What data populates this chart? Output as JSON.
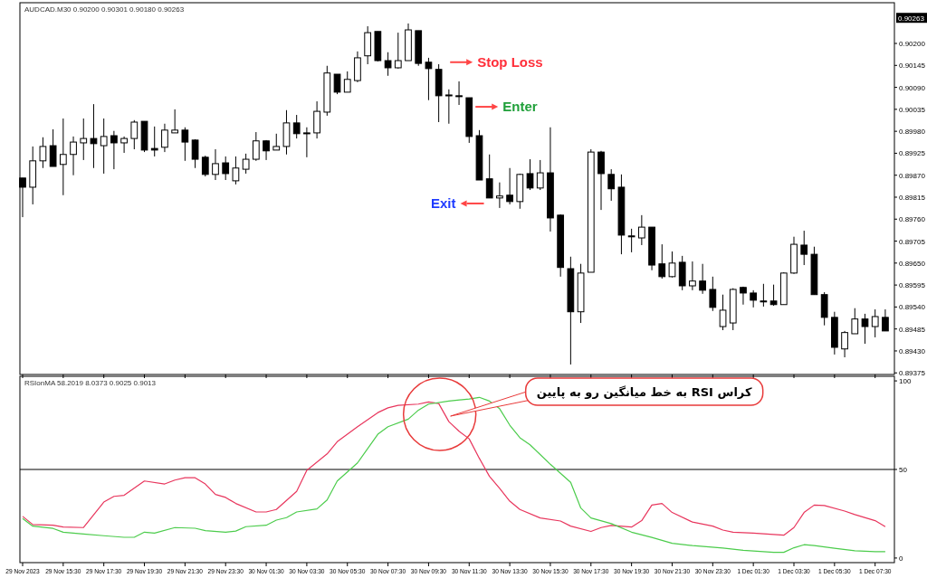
{
  "chart_data": [
    {
      "type": "candlestick",
      "title": "AUDCAD.M30  0.90200 0.90301 0.90180 0.90263",
      "color": "#000000",
      "x": [
        "2023-11-29T13:30",
        "2023-11-29T14:00",
        "2023-11-29T14:30",
        "2023-11-29T15:00",
        "2023-11-29T15:30",
        "2023-11-29T16:00",
        "2023-11-29T16:30",
        "2023-11-29T17:00",
        "2023-11-29T17:30",
        "2023-11-29T18:00",
        "2023-11-29T18:30",
        "2023-11-29T19:00",
        "2023-11-29T19:30",
        "2023-11-29T20:00",
        "2023-11-29T20:30",
        "2023-11-29T21:00",
        "2023-11-29T21:30",
        "2023-11-29T22:00",
        "2023-11-29T22:30",
        "2023-11-29T23:00",
        "2023-11-29T23:30",
        "2023-11-30T00:00",
        "2023-11-30T00:30",
        "2023-11-30T01:00",
        "2023-11-30T01:30",
        "2023-11-30T02:00",
        "2023-11-30T02:30",
        "2023-11-30T03:00",
        "2023-11-30T03:30",
        "2023-11-30T04:00",
        "2023-11-30T04:30",
        "2023-11-30T05:00",
        "2023-11-30T05:30",
        "2023-11-30T06:00",
        "2023-11-30T06:30",
        "2023-11-30T07:00",
        "2023-11-30T07:30",
        "2023-11-30T08:00",
        "2023-11-30T08:30",
        "2023-11-30T09:00",
        "2023-11-30T09:30",
        "2023-11-30T10:00",
        "2023-11-30T10:30",
        "2023-11-30T11:00",
        "2023-11-30T11:30",
        "2023-11-30T12:00",
        "2023-11-30T12:30",
        "2023-11-30T13:00",
        "2023-11-30T13:30",
        "2023-11-30T14:00",
        "2023-11-30T14:30",
        "2023-11-30T15:00",
        "2023-11-30T15:30",
        "2023-11-30T16:00",
        "2023-11-30T16:30",
        "2023-11-30T17:00",
        "2023-11-30T17:30",
        "2023-11-30T18:00",
        "2023-11-30T18:30",
        "2023-11-30T19:00",
        "2023-11-30T19:30",
        "2023-11-30T20:00",
        "2023-11-30T20:30",
        "2023-11-30T21:00",
        "2023-11-30T21:30",
        "2023-11-30T22:00",
        "2023-11-30T22:30",
        "2023-11-30T23:00",
        "2023-11-30T23:30",
        "2023-12-01T00:00",
        "2023-12-01T00:30",
        "2023-12-01T01:00",
        "2023-12-01T01:30",
        "2023-12-01T02:00",
        "2023-12-01T02:30",
        "2023-12-01T03:00",
        "2023-12-01T03:30",
        "2023-12-01T04:00",
        "2023-12-01T04:30",
        "2023-12-01T05:00",
        "2023-12-01T05:30",
        "2023-12-01T06:00",
        "2023-12-01T06:30",
        "2023-12-01T07:00",
        "2023-12-01T07:30",
        "2023-12-01T08:00"
      ],
      "ohlc": [
        [
          0.89863,
          0.89863,
          0.89765,
          0.8984
        ],
        [
          0.8984,
          0.89942,
          0.89797,
          0.89906
        ],
        [
          0.89906,
          0.89965,
          0.89888,
          0.89942
        ],
        [
          0.89944,
          0.89985,
          0.89892,
          0.89892
        ],
        [
          0.89897,
          0.90012,
          0.8982,
          0.89922
        ],
        [
          0.89922,
          0.89967,
          0.8987,
          0.89953
        ],
        [
          0.89951,
          0.90012,
          0.89908,
          0.89962
        ],
        [
          0.89962,
          0.90048,
          0.89888,
          0.89949
        ],
        [
          0.89944,
          0.90012,
          0.89874,
          0.89967
        ],
        [
          0.89969,
          0.89981,
          0.89885,
          0.89951
        ],
        [
          0.89951,
          0.89967,
          0.89926,
          0.89962
        ],
        [
          0.89962,
          0.90008,
          0.89935,
          0.90003
        ],
        [
          0.90005,
          0.90005,
          0.89928,
          0.89933
        ],
        [
          0.89937,
          0.89992,
          0.89917,
          0.89933
        ],
        [
          0.8994,
          0.89999,
          0.89928,
          0.89983
        ],
        [
          0.89976,
          0.90035,
          0.89976,
          0.89983
        ],
        [
          0.89983,
          0.8999,
          0.89906,
          0.89953
        ],
        [
          0.89958,
          0.8996,
          0.89888,
          0.8991
        ],
        [
          0.89915,
          0.89919,
          0.89867,
          0.89872
        ],
        [
          0.89872,
          0.89935,
          0.89858,
          0.89899
        ],
        [
          0.89901,
          0.89917,
          0.89858,
          0.89874
        ],
        [
          0.89856,
          0.89917,
          0.89847,
          0.89888
        ],
        [
          0.89885,
          0.89924,
          0.89874,
          0.8991
        ],
        [
          0.8991,
          0.89978,
          0.89906,
          0.89956
        ],
        [
          0.89956,
          0.89958,
          0.89908,
          0.89931
        ],
        [
          0.89933,
          0.89974,
          0.89933,
          0.89942
        ],
        [
          0.89942,
          0.90033,
          0.89922,
          0.90001
        ],
        [
          0.90001,
          0.90021,
          0.89962,
          0.89974
        ],
        [
          0.89976,
          0.8999,
          0.89915,
          0.89974
        ],
        [
          0.89976,
          0.90055,
          0.89962,
          0.9003
        ],
        [
          0.90028,
          0.90144,
          0.90019,
          0.90126
        ],
        [
          0.90123,
          0.90123,
          0.90073,
          0.90078
        ],
        [
          0.90078,
          0.9013,
          0.90078,
          0.9011
        ],
        [
          0.90107,
          0.9018,
          0.90103,
          0.90164
        ],
        [
          0.90169,
          0.90243,
          0.90148,
          0.90227
        ],
        [
          0.9023,
          0.9023,
          0.90155,
          0.90157
        ],
        [
          0.90157,
          0.90178,
          0.90119,
          0.90139
        ],
        [
          0.90139,
          0.90227,
          0.90137,
          0.90157
        ],
        [
          0.90157,
          0.9025,
          0.90157,
          0.90234
        ],
        [
          0.90232,
          0.90232,
          0.90144,
          0.9015
        ],
        [
          0.90153,
          0.90164,
          0.90058,
          0.90137
        ],
        [
          0.90135,
          0.90148,
          0.90003,
          0.90069
        ],
        [
          0.90071,
          0.90085,
          0.89999,
          0.90069
        ],
        [
          0.90069,
          0.90105,
          0.90046,
          0.90069
        ],
        [
          0.90064,
          0.90064,
          0.89951,
          0.89967
        ],
        [
          0.89969,
          0.89983,
          0.89858,
          0.89858
        ],
        [
          0.89861,
          0.89922,
          0.89813,
          0.89813
        ],
        [
          0.89813,
          0.89852,
          0.89788,
          0.89818
        ],
        [
          0.8982,
          0.89888,
          0.89797,
          0.89804
        ],
        [
          0.89804,
          0.89874,
          0.89786,
          0.89872
        ],
        [
          0.89874,
          0.8991,
          0.89833,
          0.89838
        ],
        [
          0.89838,
          0.89908,
          0.89833,
          0.89876
        ],
        [
          0.89876,
          0.8999,
          0.89729,
          0.89763
        ],
        [
          0.8977,
          0.89772,
          0.89616,
          0.89639
        ],
        [
          0.89636,
          0.89666,
          0.89396,
          0.89528
        ],
        [
          0.89528,
          0.89648,
          0.895,
          0.89625
        ],
        [
          0.89627,
          0.89935,
          0.89627,
          0.89928
        ],
        [
          0.89928,
          0.89931,
          0.89783,
          0.89874
        ],
        [
          0.89872,
          0.89885,
          0.89806,
          0.89836
        ],
        [
          0.8984,
          0.89872,
          0.89672,
          0.8972
        ],
        [
          0.89718,
          0.89736,
          0.89677,
          0.89718
        ],
        [
          0.89713,
          0.8977,
          0.89695,
          0.8974
        ],
        [
          0.8974,
          0.8974,
          0.89632,
          0.89645
        ],
        [
          0.89648,
          0.89697,
          0.89611,
          0.89616
        ],
        [
          0.89616,
          0.89679,
          0.89614,
          0.8965
        ],
        [
          0.89652,
          0.89668,
          0.89582,
          0.89593
        ],
        [
          0.89593,
          0.89654,
          0.89582,
          0.89605
        ],
        [
          0.89605,
          0.89648,
          0.89573,
          0.89582
        ],
        [
          0.89584,
          0.89616,
          0.8953,
          0.89539
        ],
        [
          0.89491,
          0.89571,
          0.89482,
          0.89532
        ],
        [
          0.895,
          0.89587,
          0.89482,
          0.89584
        ],
        [
          0.89589,
          0.89591,
          0.89546,
          0.89575
        ],
        [
          0.89575,
          0.89582,
          0.89539,
          0.89557
        ],
        [
          0.89555,
          0.89598,
          0.89541,
          0.89555
        ],
        [
          0.89555,
          0.89596,
          0.89543,
          0.89546
        ],
        [
          0.89546,
          0.89627,
          0.89546,
          0.89625
        ],
        [
          0.89625,
          0.89716,
          0.89623,
          0.89697
        ],
        [
          0.89695,
          0.89731,
          0.89645,
          0.89672
        ],
        [
          0.89672,
          0.89691,
          0.89571,
          0.89571
        ],
        [
          0.89571,
          0.89577,
          0.89494,
          0.89514
        ],
        [
          0.89514,
          0.89528,
          0.89421,
          0.89439
        ],
        [
          0.89435,
          0.8948,
          0.89414,
          0.89476
        ],
        [
          0.89473,
          0.89537,
          0.89473,
          0.8951
        ],
        [
          0.8951,
          0.89523,
          0.89448,
          0.89491
        ],
        [
          0.89491,
          0.89534,
          0.89464,
          0.89516
        ],
        [
          0.89514,
          0.89534,
          0.8948,
          0.8948
        ]
      ],
      "xlim": [
        "2023-11-29T13:22",
        "2023-12-01T08:27"
      ],
      "ylim": [
        0.89371,
        0.90302
      ],
      "yticks": [
        0.89375,
        {
          "value": 0.8943,
          "label": "0.89430"
        },
        0.89485,
        {
          "value": 0.8954,
          "label": "0.89540"
        },
        0.89595,
        {
          "value": 0.8965,
          "label": "0.89650"
        },
        0.89705,
        {
          "value": 0.8976,
          "label": "0.89760"
        },
        0.89815,
        {
          "value": 0.8987,
          "label": "0.89870"
        },
        0.89925,
        {
          "value": 0.8998,
          "label": "0.89980"
        },
        0.90035,
        {
          "value": 0.9009,
          "label": "0.90090"
        },
        0.90145,
        {
          "value": 0.902,
          "label": "0.90200"
        }
      ],
      "xticks": [
        {
          "value": "2023-11-29T13:30",
          "label": null
        },
        {
          "value": "2023-11-29T15:30",
          "label": null
        },
        {
          "value": "2023-11-29T17:30",
          "label": null
        },
        {
          "value": "2023-11-29T19:30",
          "label": null
        },
        {
          "value": "2023-11-29T21:30",
          "label": null
        },
        {
          "value": "2023-11-29T23:30",
          "label": null
        },
        {
          "value": "2023-11-30T01:30",
          "label": null
        },
        {
          "value": "2023-11-30T03:30",
          "label": null
        },
        {
          "value": "2023-11-30T05:30",
          "label": null
        },
        {
          "value": "2023-11-30T07:30",
          "label": null
        },
        {
          "value": "2023-11-30T09:30",
          "label": null
        },
        {
          "value": "2023-11-30T11:30",
          "label": null
        },
        {
          "value": "2023-11-30T13:30",
          "label": null
        },
        {
          "value": "2023-11-30T15:30",
          "label": null
        },
        {
          "value": "2023-11-30T17:30",
          "label": null
        },
        {
          "value": "2023-11-30T19:30",
          "label": null
        },
        {
          "value": "2023-11-30T21:30",
          "label": null
        },
        {
          "value": "2023-11-30T23:30",
          "label": null
        },
        {
          "value": "2023-12-01T01:30",
          "label": null
        },
        {
          "value": "2023-12-01T03:30",
          "label": null
        },
        {
          "value": "2023-12-01T05:30",
          "label": null
        },
        {
          "value": "2023-12-01T07:30",
          "label": null
        }
      ],
      "tick_labels": "y",
      "annotations": [
        {
          "text": "0.90263",
          "y": 0.90263
        },
        "Stop Loss",
        "Enter",
        "Exit"
      ]
    },
    {
      "type": "line",
      "title": "RSIonMA 58.2019 8.0373 0.9025 0.9013",
      "series": [
        {
          "color": "#e8365d",
          "x": [
            "2023-11-29T13:30",
            "2023-11-29T14:00",
            "2023-11-29T15:00",
            "2023-11-29T15:30",
            "2023-11-29T16:30",
            "2023-11-29T17:30",
            "2023-11-29T18:00",
            "2023-11-29T18:30",
            "2023-11-29T19:30",
            "2023-11-29T20:30",
            "2023-11-29T21:00",
            "2023-11-29T21:30",
            "2023-11-29T22:00",
            "2023-11-29T22:30",
            "2023-11-29T23:00",
            "2023-11-29T23:30",
            "2023-11-30T00:00",
            "2023-11-30T01:00",
            "2023-11-30T01:30",
            "2023-11-30T02:00",
            "2023-11-30T03:00",
            "2023-11-30T03:30",
            "2023-11-30T04:30",
            "2023-11-30T05:00",
            "2023-11-30T06:00",
            "2023-11-30T07:00",
            "2023-11-30T07:30",
            "2023-11-30T08:00",
            "2023-11-30T09:00",
            "2023-11-30T09:30",
            "2023-11-30T10:00",
            "2023-11-30T10:30",
            "2023-11-30T11:00",
            "2023-11-30T11:30",
            "2023-11-30T12:00",
            "2023-11-30T12:30",
            "2023-11-30T13:00",
            "2023-11-30T13:30",
            "2023-11-30T14:00",
            "2023-11-30T15:00",
            "2023-11-30T16:00",
            "2023-11-30T16:30",
            "2023-11-30T17:30",
            "2023-11-30T18:00",
            "2023-11-30T18:30",
            "2023-11-30T19:30",
            "2023-11-30T20:00",
            "2023-11-30T20:30",
            "2023-11-30T21:00",
            "2023-11-30T21:30",
            "2023-11-30T22:30",
            "2023-11-30T23:30",
            "2023-12-01T00:00",
            "2023-12-01T00:30",
            "2023-12-01T01:30",
            "2023-12-01T02:30",
            "2023-12-01T03:00",
            "2023-12-01T03:30",
            "2023-12-01T04:00",
            "2023-12-01T04:30",
            "2023-12-01T05:00",
            "2023-12-01T06:00",
            "2023-12-01T06:30",
            "2023-12-01T07:30",
            "2023-12-01T08:00"
          ],
          "values": [
            23.5,
            18.9,
            18.5,
            17.5,
            17.2,
            31.6,
            34.8,
            35.4,
            43.5,
            41.8,
            44.0,
            45.3,
            45.3,
            41.8,
            35.9,
            34.2,
            30.8,
            26.0,
            26.0,
            27.4,
            37.6,
            49.5,
            58.8,
            65.7,
            74.1,
            82.1,
            84.8,
            86.2,
            86.9,
            88.1,
            87.2,
            77.0,
            71.6,
            67.3,
            56.3,
            46.1,
            39.3,
            32.1,
            27.4,
            22.6,
            20.9,
            18.0,
            15.0,
            17.2,
            18.4,
            17.5,
            21.1,
            29.9,
            30.8,
            25.7,
            20.3,
            18.0,
            15.8,
            14.6,
            14.1,
            13.3,
            12.9,
            17.2,
            25.7,
            29.9,
            29.6,
            26.5,
            24.5,
            21.1,
            17.7
          ]
        },
        {
          "color": "#4ccc4c",
          "x": [
            "2023-11-29T13:30",
            "2023-11-29T14:00",
            "2023-11-29T15:00",
            "2023-11-29T15:30",
            "2023-11-29T16:30",
            "2023-11-29T17:30",
            "2023-11-29T18:30",
            "2023-11-29T19:00",
            "2023-11-29T19:30",
            "2023-11-29T20:00",
            "2023-11-29T21:00",
            "2023-11-29T22:00",
            "2023-11-29T22:30",
            "2023-11-29T23:30",
            "2023-11-30T00:00",
            "2023-11-30T00:30",
            "2023-11-30T01:30",
            "2023-11-30T02:00",
            "2023-11-30T02:30",
            "2023-11-30T03:00",
            "2023-11-30T04:00",
            "2023-11-30T04:30",
            "2023-11-30T05:00",
            "2023-11-30T06:00",
            "2023-11-30T07:00",
            "2023-11-30T07:30",
            "2023-11-30T08:30",
            "2023-11-30T09:00",
            "2023-11-30T09:30",
            "2023-11-30T10:30",
            "2023-11-30T11:30",
            "2023-11-30T12:00",
            "2023-11-30T12:30",
            "2023-11-30T13:00",
            "2023-11-30T13:30",
            "2023-11-30T14:00",
            "2023-11-30T14:30",
            "2023-11-30T15:30",
            "2023-11-30T16:30",
            "2023-11-30T17:00",
            "2023-11-30T17:30",
            "2023-11-30T18:30",
            "2023-11-30T19:30",
            "2023-11-30T20:30",
            "2023-11-30T21:30",
            "2023-11-30T22:30",
            "2023-12-01T00:00",
            "2023-12-01T01:00",
            "2023-12-01T02:30",
            "2023-12-01T03:00",
            "2023-12-01T03:30",
            "2023-12-01T04:00",
            "2023-12-01T04:30",
            "2023-12-01T05:30",
            "2023-12-01T06:30",
            "2023-12-01T07:30",
            "2023-12-01T08:00"
          ],
          "values": [
            22.3,
            18.0,
            16.7,
            14.6,
            13.6,
            12.6,
            11.7,
            11.7,
            14.6,
            14.1,
            17.2,
            16.8,
            15.5,
            14.6,
            15.2,
            17.7,
            18.5,
            21.4,
            22.8,
            26.0,
            27.7,
            32.8,
            43.5,
            53.7,
            69.9,
            74.1,
            78.4,
            83.5,
            86.9,
            88.6,
            89.8,
            90.7,
            88.6,
            84.3,
            75.0,
            67.9,
            63.9,
            52.9,
            42.7,
            28.2,
            22.6,
            19.4,
            14.6,
            11.6,
            8.3,
            7.0,
            5.6,
            4.4,
            3.2,
            3.2,
            5.8,
            7.5,
            7.0,
            5.5,
            4.1,
            3.6,
            3.6
          ]
        }
      ],
      "xlim": [
        "2023-11-29T13:22",
        "2023-12-01T08:27"
      ],
      "ylim": [
        -2.6,
        102.6
      ],
      "yticks": [
        0,
        50,
        100
      ],
      "ref_lines": [
        {
          "axis": "y",
          "value": 50
        }
      ],
      "xticks": [
        {
          "value": "2023-11-29T13:30",
          "label": "29 Nov 2023"
        },
        {
          "value": "2023-11-29T15:30",
          "label": "29 Nov 15:30"
        },
        {
          "value": "2023-11-29T17:30",
          "label": "29 Nov 17:30"
        },
        {
          "value": "2023-11-29T19:30",
          "label": "29 Nov 19:30"
        },
        {
          "value": "2023-11-29T21:30",
          "label": "29 Nov 21:30"
        },
        {
          "value": "2023-11-29T23:30",
          "label": "29 Nov 23:30"
        },
        {
          "value": "2023-11-30T01:30",
          "label": "30 Nov 01:30"
        },
        {
          "value": "2023-11-30T03:30",
          "label": "30 Nov 03:30"
        },
        {
          "value": "2023-11-30T05:30",
          "label": "30 Nov 05:30"
        },
        {
          "value": "2023-11-30T07:30",
          "label": "30 Nov 07:30"
        },
        {
          "value": "2023-11-30T09:30",
          "label": "30 Nov 09:30"
        },
        {
          "value": "2023-11-30T11:30",
          "label": "30 Nov 11:30"
        },
        {
          "value": "2023-11-30T13:30",
          "label": "30 Nov 13:30"
        },
        {
          "value": "2023-11-30T15:30",
          "label": "30 Nov 15:30"
        },
        {
          "value": "2023-11-30T17:30",
          "label": "30 Nov 17:30"
        },
        {
          "value": "2023-11-30T19:30",
          "label": "30 Nov 19:30"
        },
        {
          "value": "2023-11-30T21:30",
          "label": "30 Nov 21:30"
        },
        {
          "value": "2023-11-30T23:30",
          "label": "30 Nov 23:30"
        },
        {
          "value": "2023-12-01T01:30",
          "label": "1 Dec 01:30"
        },
        {
          "value": "2023-12-01T03:30",
          "label": "1 Dec 03:30"
        },
        {
          "value": "2023-12-01T05:30",
          "label": "1 Dec 05:30"
        },
        {
          "value": "2023-12-01T07:30",
          "label": "1 Dec 07:30"
        }
      ],
      "annotations": [
        "کراس RSI به خط میانگین رو به پایین"
      ]
    }
  ]
}
